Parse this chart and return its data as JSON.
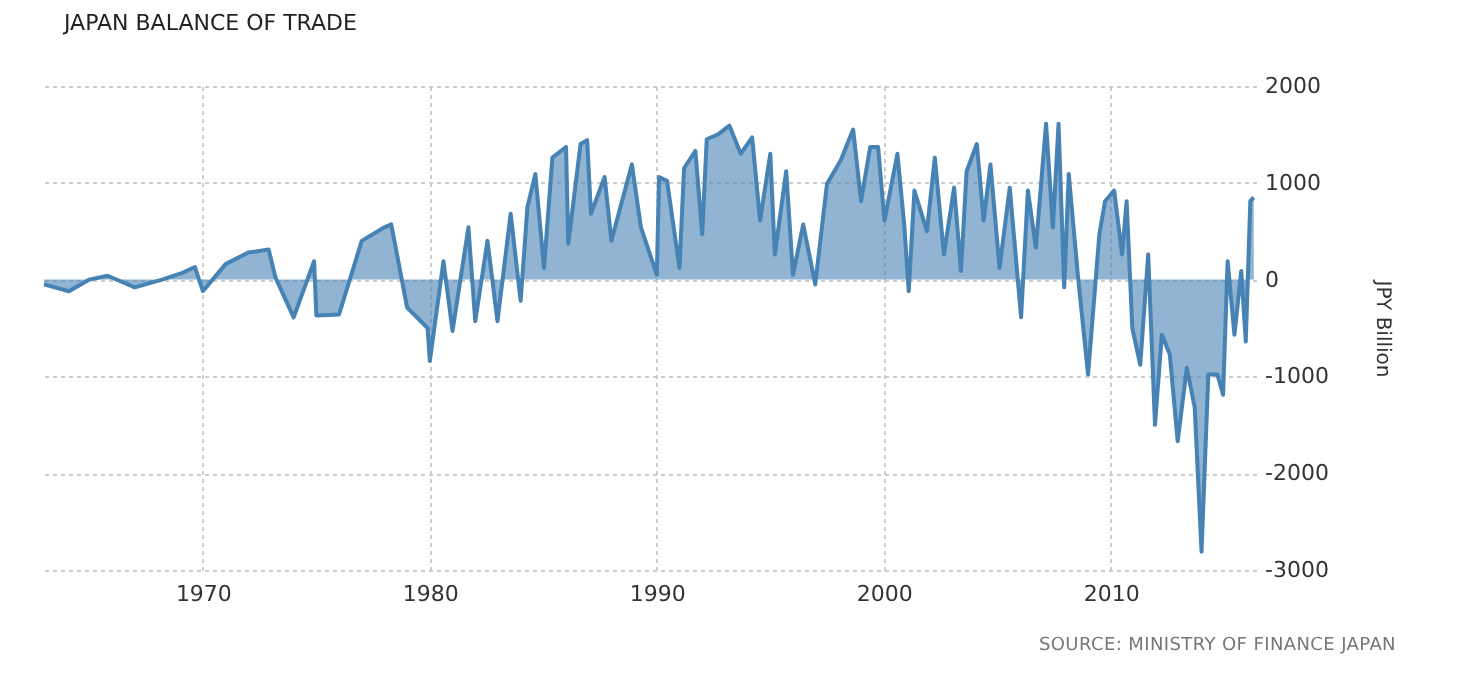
{
  "chart_data": {
    "type": "area",
    "title": "JAPAN BALANCE OF TRADE",
    "ylabel": "JPY Billion",
    "annotations": [
      "SOURCE: MINISTRY OF FINANCE JAPAN"
    ],
    "xlim": [
      1963,
      2016.4
    ],
    "xticks": [
      1970,
      1980,
      1990,
      2000,
      2010
    ],
    "ylim": [
      -3000,
      2000
    ],
    "yticks": [
      -3000,
      -2000,
      -1000,
      0,
      1000,
      2000
    ],
    "grid": true,
    "series": [
      {
        "color": "#4682b4",
        "x": [
          1963.0,
          1964.1,
          1965.0,
          1965.8,
          1967.0,
          1968.2,
          1969.1,
          1969.65,
          1970.0,
          1971.0,
          1972.0,
          1972.9,
          1973.2,
          1974.0,
          1974.9,
          1975.0,
          1976.0,
          1977.0,
          1978.0,
          1978.3,
          1979.0,
          1979.9,
          1980.0,
          1980.6,
          1981.0,
          1981.7,
          1982.0,
          1982.54,
          1982.98,
          1983.56,
          1984.0,
          1984.3,
          1984.65,
          1985.03,
          1985.4,
          1986.0,
          1986.1,
          1986.64,
          1986.93,
          1987.1,
          1987.7,
          1988.0,
          1988.9,
          1989.3,
          1990.0,
          1990.1,
          1990.45,
          1991.0,
          1991.2,
          1991.7,
          1992.0,
          1992.2,
          1992.7,
          1993.2,
          1993.7,
          1994.2,
          1994.55,
          1995.0,
          1995.2,
          1995.7,
          1996.0,
          1996.45,
          1996.98,
          1997.5,
          1998.1,
          1998.65,
          1999.0,
          1999.4,
          1999.75,
          2000.03,
          2000.6,
          2000.9,
          2001.1,
          2001.35,
          2001.9,
          2002.25,
          2002.65,
          2003.1,
          2003.4,
          2003.65,
          2004.1,
          2004.4,
          2004.7,
          2005.1,
          2005.55,
          2006.05,
          2006.35,
          2006.7,
          2007.15,
          2007.45,
          2007.7,
          2007.95,
          2008.15,
          2008.55,
          2009.0,
          2009.5,
          2009.75,
          2010.15,
          2010.5,
          2010.7,
          2010.95,
          2011.3,
          2011.65,
          2011.95,
          2012.25,
          2012.6,
          2012.95,
          2013.35,
          2013.7,
          2014.0,
          2014.3,
          2014.7,
          2014.95,
          2015.15,
          2015.45,
          2015.75,
          2015.95,
          2016.15,
          2016.3
        ],
        "values": [
          -50,
          -120,
          0,
          40,
          -80,
          0,
          70,
          130,
          -120,
          160,
          280,
          310,
          20,
          -390,
          190,
          -370,
          -360,
          400,
          540,
          570,
          -290,
          -500,
          -840,
          190,
          -530,
          540,
          -430,
          400,
          -430,
          680,
          -220,
          750,
          1090,
          120,
          1260,
          1370,
          370,
          1400,
          1440,
          680,
          1060,
          400,
          1190,
          540,
          50,
          1060,
          1020,
          120,
          1150,
          1330,
          470,
          1450,
          1500,
          1590,
          1300,
          1470,
          610,
          1300,
          260,
          1120,
          50,
          570,
          -50,
          990,
          1230,
          1550,
          810,
          1370,
          1370,
          610,
          1300,
          570,
          -120,
          920,
          500,
          1260,
          260,
          950,
          90,
          1120,
          1400,
          610,
          1190,
          120,
          950,
          -390,
          920,
          330,
          1610,
          540,
          1610,
          -80,
          1090,
          50,
          -980,
          470,
          810,
          920,
          260,
          810,
          -500,
          -880,
          260,
          -1500,
          -570,
          -770,
          -1670,
          -910,
          -1320,
          -2810,
          -980,
          -980,
          -1190,
          190,
          -570,
          90,
          -640,
          810,
          850
        ]
      }
    ]
  }
}
